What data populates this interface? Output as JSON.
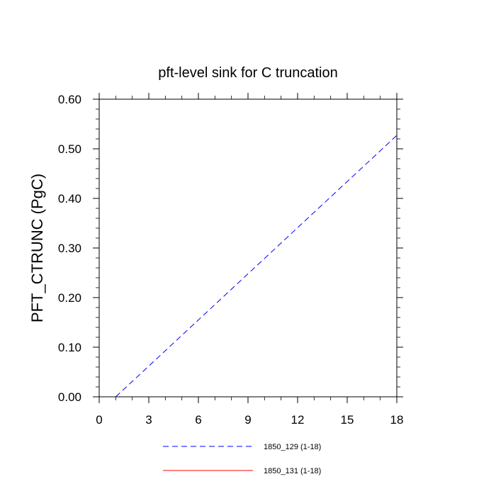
{
  "chart_data": {
    "type": "line",
    "title": "pft-level sink for C truncation",
    "xlabel": "",
    "ylabel": "PFT_CTRUNC  (PgC)",
    "xlim": [
      0,
      18
    ],
    "ylim": [
      0.0,
      0.6
    ],
    "x_ticks": [
      0,
      3,
      6,
      9,
      12,
      15,
      18
    ],
    "x_tick_labels": [
      "0",
      "3",
      "6",
      "9",
      "12",
      "15",
      "18"
    ],
    "y_ticks": [
      0.0,
      0.1,
      0.2,
      0.3,
      0.4,
      0.5,
      0.6
    ],
    "y_tick_labels": [
      "0.00",
      "0.10",
      "0.20",
      "0.30",
      "0.40",
      "0.50",
      "0.60"
    ],
    "grid": false,
    "legend_position": "bottom",
    "series": [
      {
        "name": "1850_129 (1-18)",
        "color": "#0000ff",
        "dash": "dashed",
        "x": [
          1,
          2,
          3,
          4,
          5,
          6,
          7,
          8,
          9,
          10,
          11,
          12,
          13,
          14,
          15,
          16,
          17,
          18
        ],
        "y": [
          0.0,
          0.031,
          0.062,
          0.093,
          0.124,
          0.155,
          0.186,
          0.217,
          0.248,
          0.279,
          0.31,
          0.341,
          0.372,
          0.403,
          0.434,
          0.465,
          0.496,
          0.527
        ]
      },
      {
        "name": "1850_131 (1-18)",
        "color": "#ff0000",
        "dash": "solid",
        "x": [
          1,
          2,
          3,
          4,
          5,
          6,
          7,
          8,
          9,
          10,
          11,
          12,
          13,
          14,
          15,
          16,
          17,
          18
        ],
        "y": [
          0,
          0,
          0,
          0,
          0,
          0,
          0,
          0,
          0,
          0,
          0,
          0,
          0,
          0,
          0,
          0,
          0,
          0
        ]
      }
    ]
  }
}
